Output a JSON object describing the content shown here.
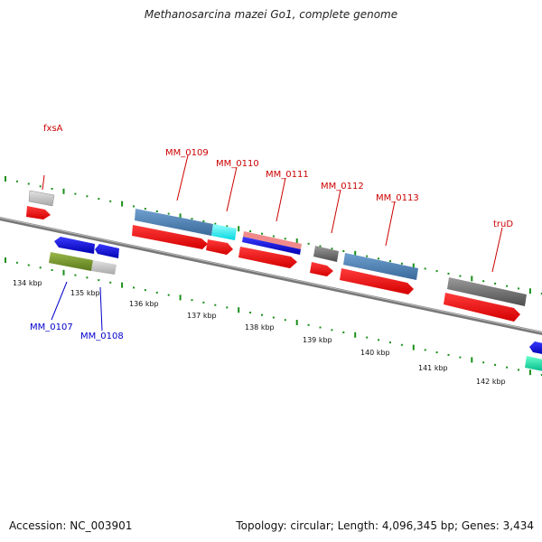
{
  "title": "Methanosarcina mazei Go1, complete genome",
  "footer": {
    "accession_label": "Accession:",
    "accession": "NC_003901",
    "topology_text": "Topology: circular; Length: 4,096,345 bp; Genes: 3,434"
  },
  "colors": {
    "label_top": "#cc0000",
    "label_bottom": "#0000cc",
    "backbone": "#888888",
    "tick": "#1a8f1a"
  },
  "kbp_labels": [
    "134 kbp",
    "135 kbp",
    "136 kbp",
    "137 kbp",
    "138 kbp",
    "139 kbp",
    "140 kbp",
    "141 kbp",
    "142 kbp"
  ],
  "gene_labels": {
    "top": [
      "fxsA",
      "MM_0109",
      "MM_0110",
      "MM_0111",
      "MM_0112",
      "MM_0113",
      "truD"
    ],
    "bottom": [
      "MM_0107",
      "MM_0108"
    ]
  }
}
